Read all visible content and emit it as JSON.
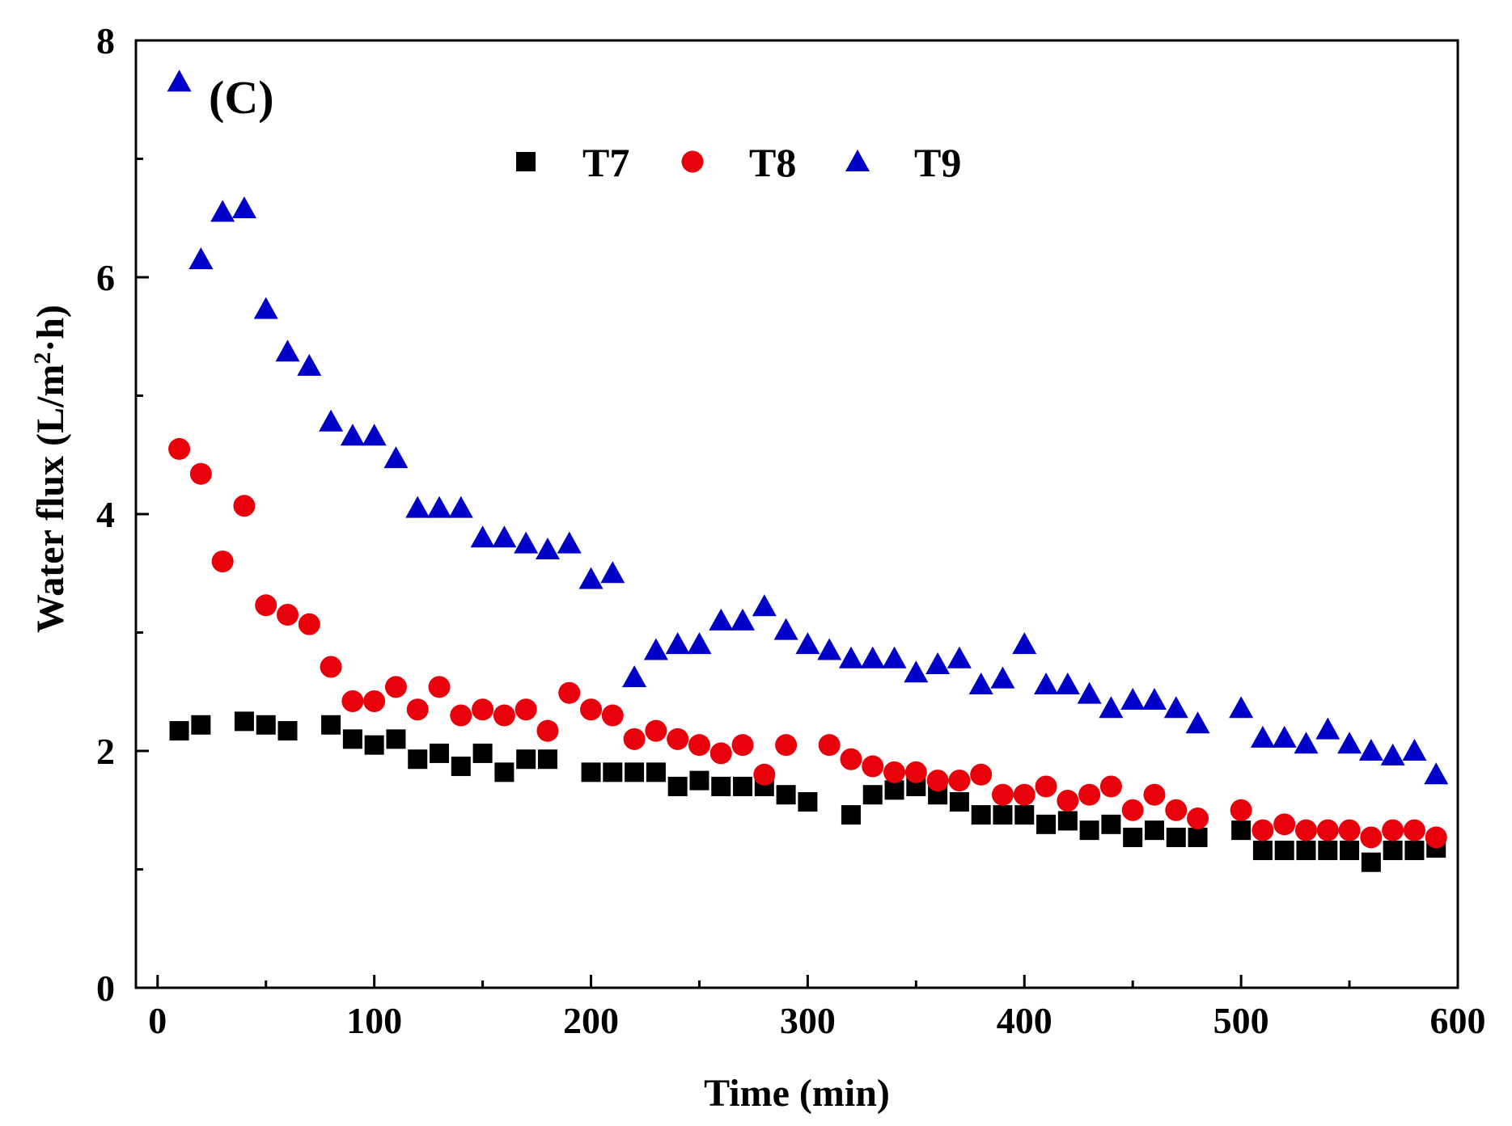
{
  "chart_data": {
    "type": "scatter",
    "panel_label": "(C)",
    "xlabel": "Time (min)",
    "ylabel_main": "Water flux (L/m",
    "ylabel_sup": "2",
    "ylabel_tail": "·h)",
    "xlim": [
      -10,
      600
    ],
    "ylim": [
      0,
      8
    ],
    "xticks": [
      0,
      100,
      200,
      300,
      400,
      500,
      600
    ],
    "yticks": [
      0,
      2,
      4,
      6,
      8
    ],
    "legend_position": "top-center",
    "series": [
      {
        "name": "T7",
        "marker": "square",
        "color": "#000000",
        "x": [
          10,
          20,
          40,
          50,
          60,
          80,
          90,
          100,
          110,
          120,
          130,
          140,
          150,
          160,
          170,
          180,
          200,
          210,
          220,
          230,
          240,
          250,
          260,
          270,
          280,
          290,
          300,
          320,
          330,
          340,
          350,
          360,
          370,
          380,
          390,
          400,
          410,
          420,
          430,
          440,
          450,
          460,
          470,
          480,
          500,
          510,
          520,
          530,
          540,
          550,
          560,
          570,
          580,
          590
        ],
        "y": [
          2.17,
          2.22,
          2.25,
          2.22,
          2.17,
          2.22,
          2.1,
          2.05,
          2.1,
          1.93,
          1.98,
          1.87,
          1.98,
          1.82,
          1.93,
          1.93,
          1.82,
          1.82,
          1.82,
          1.82,
          1.7,
          1.75,
          1.7,
          1.7,
          1.7,
          1.63,
          1.57,
          1.46,
          1.63,
          1.67,
          1.7,
          1.63,
          1.57,
          1.46,
          1.46,
          1.46,
          1.38,
          1.41,
          1.33,
          1.38,
          1.27,
          1.33,
          1.27,
          1.27,
          1.33,
          1.16,
          1.16,
          1.16,
          1.16,
          1.16,
          1.06,
          1.16,
          1.16,
          1.18
        ]
      },
      {
        "name": "T8",
        "marker": "circle",
        "color": "#e8000b",
        "x": [
          10,
          20,
          30,
          40,
          50,
          60,
          70,
          80,
          90,
          100,
          110,
          120,
          130,
          140,
          150,
          160,
          170,
          180,
          190,
          200,
          210,
          220,
          230,
          240,
          250,
          260,
          270,
          280,
          290,
          310,
          320,
          330,
          340,
          350,
          360,
          370,
          380,
          390,
          400,
          410,
          420,
          430,
          440,
          450,
          460,
          470,
          480,
          500,
          510,
          520,
          530,
          540,
          550,
          560,
          570,
          580,
          590
        ],
        "y": [
          4.55,
          4.34,
          3.6,
          4.07,
          3.23,
          3.15,
          3.07,
          2.71,
          2.42,
          2.42,
          2.54,
          2.35,
          2.54,
          2.3,
          2.35,
          2.3,
          2.35,
          2.17,
          2.49,
          2.35,
          2.3,
          2.1,
          2.17,
          2.1,
          2.05,
          1.98,
          2.05,
          1.8,
          2.05,
          2.05,
          1.93,
          1.87,
          1.82,
          1.82,
          1.75,
          1.75,
          1.8,
          1.63,
          1.63,
          1.7,
          1.58,
          1.63,
          1.7,
          1.5,
          1.63,
          1.5,
          1.43,
          1.5,
          1.33,
          1.38,
          1.33,
          1.33,
          1.33,
          1.27,
          1.33,
          1.33,
          1.27
        ]
      },
      {
        "name": "T9",
        "marker": "triangle",
        "color": "#0000c8",
        "x": [
          10,
          20,
          30,
          40,
          50,
          60,
          70,
          80,
          90,
          100,
          110,
          120,
          130,
          140,
          150,
          160,
          170,
          180,
          190,
          200,
          210,
          220,
          230,
          240,
          250,
          260,
          270,
          280,
          290,
          300,
          310,
          320,
          330,
          340,
          350,
          360,
          370,
          380,
          390,
          400,
          410,
          420,
          430,
          440,
          450,
          460,
          470,
          480,
          500,
          510,
          520,
          530,
          540,
          550,
          560,
          570,
          580,
          590
        ],
        "y": [
          7.65,
          6.15,
          6.55,
          6.58,
          5.73,
          5.37,
          5.25,
          4.78,
          4.66,
          4.66,
          4.47,
          4.05,
          4.05,
          4.05,
          3.8,
          3.8,
          3.75,
          3.7,
          3.75,
          3.45,
          3.5,
          2.62,
          2.85,
          2.9,
          2.9,
          3.1,
          3.1,
          3.22,
          3.02,
          2.9,
          2.85,
          2.78,
          2.78,
          2.78,
          2.66,
          2.73,
          2.78,
          2.56,
          2.61,
          2.9,
          2.56,
          2.56,
          2.48,
          2.36,
          2.43,
          2.43,
          2.36,
          2.23,
          2.36,
          2.11,
          2.11,
          2.06,
          2.18,
          2.06,
          2.0,
          1.96,
          2.0,
          1.8
        ]
      }
    ]
  }
}
